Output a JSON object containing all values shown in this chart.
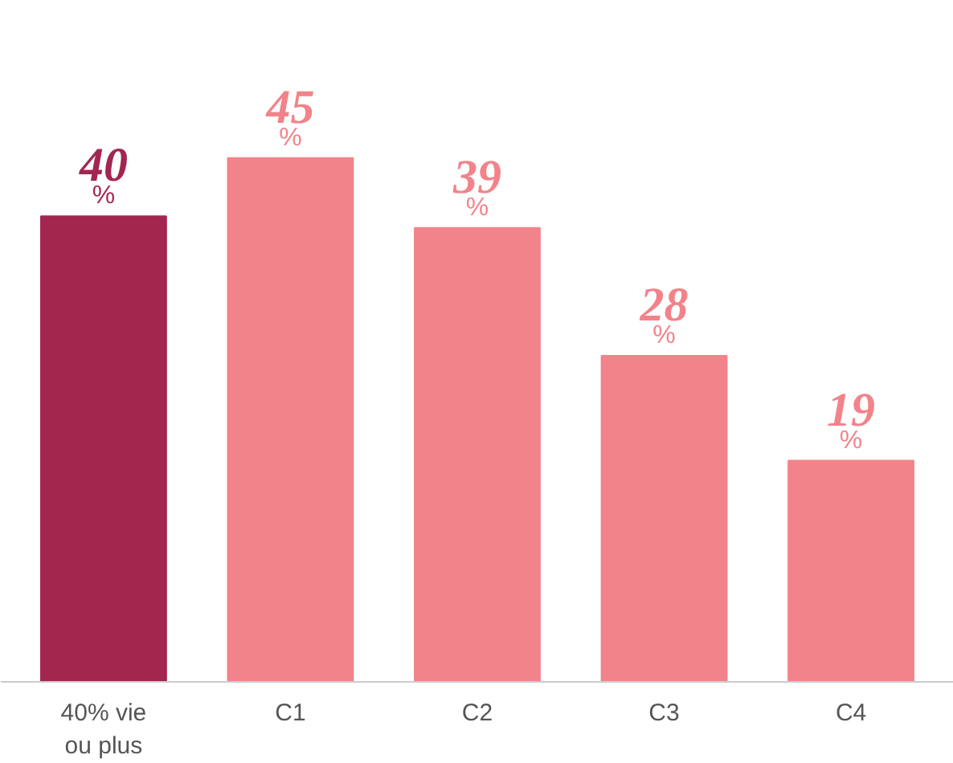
{
  "chart_data": {
    "type": "bar",
    "categories": [
      "40% vie\nou plus",
      "C1",
      "C2",
      "C3",
      "C4"
    ],
    "values": [
      40,
      45,
      39,
      28,
      19
    ],
    "colors": [
      "#a3264f",
      "#f2838a",
      "#f2838a",
      "#f2838a",
      "#f2838a"
    ],
    "value_labels": [
      "40\n%",
      "45\n%",
      "39\n%",
      "28\n%",
      "19\n%"
    ],
    "grid": false
  }
}
